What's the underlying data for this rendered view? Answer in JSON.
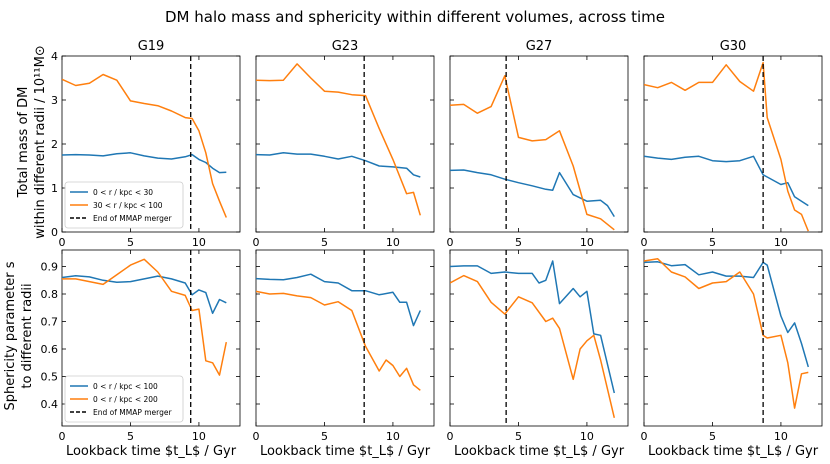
{
  "chart_data": {
    "type": "line",
    "title": "DM halo mass and sphericity within different volumes, across time",
    "xlabel": "Lookback time $t_L$ / Gyr",
    "xlim": [
      0,
      13
    ],
    "xticks": [
      0,
      5,
      10
    ],
    "rows": [
      {
        "ylabel_line1": "Total mass of DM",
        "ylabel_line2": "within different radii / 10¹¹M⊙",
        "ylim": [
          0,
          4
        ],
        "yticks": [
          0,
          1,
          2,
          3,
          4
        ],
        "legend": [
          "0 < r / kpc < 30",
          "30 < r / kpc < 100",
          "End of MMAP merger"
        ],
        "series_names": [
          "0 < r / kpc < 30",
          "30 < r / kpc < 100"
        ]
      },
      {
        "ylabel_line1": "Sphericity parameter s",
        "ylabel_line2": "to different radii",
        "ylim": [
          0.32,
          0.96
        ],
        "yticks": [
          0.4,
          0.5,
          0.6,
          0.7,
          0.8,
          0.9
        ],
        "legend": [
          "0 < r / kpc < 100",
          "0 < r / kpc < 200",
          "End of MMAP merger"
        ],
        "series_names": [
          "0 < r / kpc < 100",
          "0 < r / kpc < 200"
        ]
      }
    ],
    "colors": {
      "blue": "#1f77b4",
      "orange": "#ff7f0e",
      "merger": "#000000"
    },
    "panels": [
      {
        "name": "G19",
        "merger_time": 9.4,
        "mass": {
          "inner": {
            "x": [
              0,
              1,
              2,
              3,
              4,
              5,
              6,
              7,
              8,
              9,
              9.5,
              10,
              10.5,
              11,
              11.5,
              12
            ],
            "y": [
              1.75,
              1.76,
              1.75,
              1.73,
              1.78,
              1.8,
              1.73,
              1.68,
              1.66,
              1.71,
              1.76,
              1.65,
              1.58,
              1.45,
              1.35,
              1.36
            ]
          },
          "outer": {
            "x": [
              0,
              1,
              2,
              3,
              4,
              5,
              6,
              7,
              8,
              9,
              9.5,
              10,
              10.5,
              11,
              11.5,
              12
            ],
            "y": [
              3.47,
              3.33,
              3.38,
              3.58,
              3.45,
              2.98,
              2.92,
              2.87,
              2.75,
              2.6,
              2.58,
              2.3,
              1.8,
              1.1,
              0.7,
              0.33
            ]
          }
        },
        "sph": {
          "inner": {
            "x": [
              0,
              1,
              2,
              3,
              4,
              5,
              6,
              7,
              8,
              9,
              9.5,
              10,
              10.5,
              11,
              11.5,
              12
            ],
            "y": [
              0.86,
              0.866,
              0.862,
              0.85,
              0.843,
              0.845,
              0.855,
              0.865,
              0.855,
              0.84,
              0.797,
              0.815,
              0.805,
              0.73,
              0.78,
              0.768
            ]
          },
          "outer": {
            "x": [
              0,
              1,
              2,
              3,
              4,
              5,
              6,
              7,
              8,
              9,
              9.5,
              10,
              10.5,
              11,
              11.5,
              12
            ],
            "y": [
              0.855,
              0.855,
              0.845,
              0.835,
              0.87,
              0.905,
              0.926,
              0.88,
              0.81,
              0.795,
              0.74,
              0.745,
              0.557,
              0.55,
              0.505,
              0.625
            ]
          }
        }
      },
      {
        "name": "G23",
        "merger_time": 7.9,
        "mass": {
          "inner": {
            "x": [
              0,
              1,
              2,
              3,
              4,
              5,
              6,
              7,
              8,
              9,
              10,
              11,
              11.5,
              12
            ],
            "y": [
              1.76,
              1.75,
              1.8,
              1.77,
              1.77,
              1.72,
              1.66,
              1.72,
              1.62,
              1.5,
              1.48,
              1.45,
              1.3,
              1.25
            ]
          },
          "outer": {
            "x": [
              0,
              1,
              2,
              3,
              4,
              5,
              6,
              7,
              8,
              9,
              10,
              11,
              11.5,
              12
            ],
            "y": [
              3.45,
              3.44,
              3.45,
              3.82,
              3.5,
              3.2,
              3.18,
              3.12,
              3.1,
              2.35,
              1.65,
              0.87,
              0.9,
              0.38
            ]
          }
        },
        "sph": {
          "inner": {
            "x": [
              0,
              1,
              2,
              3,
              4,
              5,
              6,
              7,
              8,
              9,
              10,
              10.5,
              11,
              11.5,
              12
            ],
            "y": [
              0.856,
              0.853,
              0.852,
              0.86,
              0.872,
              0.845,
              0.84,
              0.812,
              0.812,
              0.797,
              0.806,
              0.77,
              0.77,
              0.685,
              0.74
            ]
          },
          "outer": {
            "x": [
              0,
              1,
              2,
              3,
              4,
              5,
              6,
              7,
              8,
              9,
              9.5,
              10,
              10.5,
              11,
              11.5,
              12
            ],
            "y": [
              0.81,
              0.8,
              0.802,
              0.793,
              0.787,
              0.76,
              0.772,
              0.74,
              0.61,
              0.52,
              0.56,
              0.54,
              0.5,
              0.53,
              0.47,
              0.45
            ]
          }
        }
      },
      {
        "name": "G27",
        "merger_time": 4.1,
        "mass": {
          "inner": {
            "x": [
              0,
              1,
              2,
              3,
              4,
              5,
              6,
              7,
              7.5,
              8,
              9,
              10,
              11,
              11.5,
              12
            ],
            "y": [
              1.4,
              1.41,
              1.35,
              1.3,
              1.2,
              1.12,
              1.05,
              0.97,
              0.95,
              1.35,
              0.85,
              0.7,
              0.72,
              0.6,
              0.35
            ]
          },
          "outer": {
            "x": [
              0,
              1,
              2,
              3,
              4,
              5,
              6,
              7,
              8,
              9,
              10,
              11,
              12
            ],
            "y": [
              2.88,
              2.9,
              2.7,
              2.85,
              3.55,
              2.15,
              2.07,
              2.1,
              2.3,
              1.5,
              0.4,
              0.3,
              0.05
            ]
          }
        },
        "sph": {
          "inner": {
            "x": [
              0,
              1,
              2,
              3,
              4,
              5,
              6,
              6.5,
              7,
              7.5,
              8,
              9,
              9.5,
              10,
              10.5,
              11,
              12
            ],
            "y": [
              0.9,
              0.902,
              0.902,
              0.875,
              0.88,
              0.875,
              0.875,
              0.84,
              0.85,
              0.92,
              0.765,
              0.82,
              0.79,
              0.81,
              0.655,
              0.65,
              0.44
            ]
          },
          "outer": {
            "x": [
              0,
              1,
              2,
              3,
              4,
              5,
              6,
              7,
              7.5,
              8,
              9,
              9.5,
              10,
              10.5,
              11,
              12
            ],
            "y": [
              0.84,
              0.867,
              0.845,
              0.77,
              0.727,
              0.79,
              0.768,
              0.7,
              0.712,
              0.675,
              0.49,
              0.6,
              0.63,
              0.65,
              0.56,
              0.35
            ]
          }
        }
      },
      {
        "name": "G30",
        "merger_time": 8.7,
        "mass": {
          "inner": {
            "x": [
              0,
              1,
              2,
              3,
              4,
              5,
              6,
              7,
              8,
              8.7,
              9,
              10,
              10.5,
              11,
              11.5,
              12
            ],
            "y": [
              1.72,
              1.68,
              1.65,
              1.7,
              1.72,
              1.62,
              1.6,
              1.62,
              1.72,
              1.3,
              1.25,
              1.08,
              1.12,
              0.8,
              0.7,
              0.6
            ]
          },
          "outer": {
            "x": [
              0,
              1,
              2,
              3,
              4,
              5,
              6,
              7,
              8,
              8.7,
              9,
              10,
              10.5,
              11,
              11.5,
              12
            ],
            "y": [
              3.35,
              3.28,
              3.4,
              3.22,
              3.4,
              3.4,
              3.8,
              3.42,
              3.2,
              3.85,
              2.6,
              1.65,
              0.93,
              0.5,
              0.4,
              0.02
            ]
          }
        },
        "sph": {
          "inner": {
            "x": [
              0,
              1,
              2,
              3,
              4,
              5,
              6,
              7,
              8,
              8.7,
              9,
              10,
              10.5,
              11,
              11.5,
              12
            ],
            "y": [
              0.915,
              0.917,
              0.903,
              0.907,
              0.87,
              0.88,
              0.865,
              0.865,
              0.86,
              0.915,
              0.905,
              0.72,
              0.66,
              0.695,
              0.62,
              0.535
            ]
          },
          "outer": {
            "x": [
              0,
              1,
              2,
              3,
              4,
              5,
              6,
              7,
              8,
              8.7,
              9,
              10,
              10.5,
              11,
              11.5,
              12
            ],
            "y": [
              0.92,
              0.928,
              0.88,
              0.862,
              0.82,
              0.84,
              0.845,
              0.88,
              0.8,
              0.65,
              0.64,
              0.65,
              0.55,
              0.385,
              0.51,
              0.515
            ]
          }
        }
      }
    ]
  }
}
